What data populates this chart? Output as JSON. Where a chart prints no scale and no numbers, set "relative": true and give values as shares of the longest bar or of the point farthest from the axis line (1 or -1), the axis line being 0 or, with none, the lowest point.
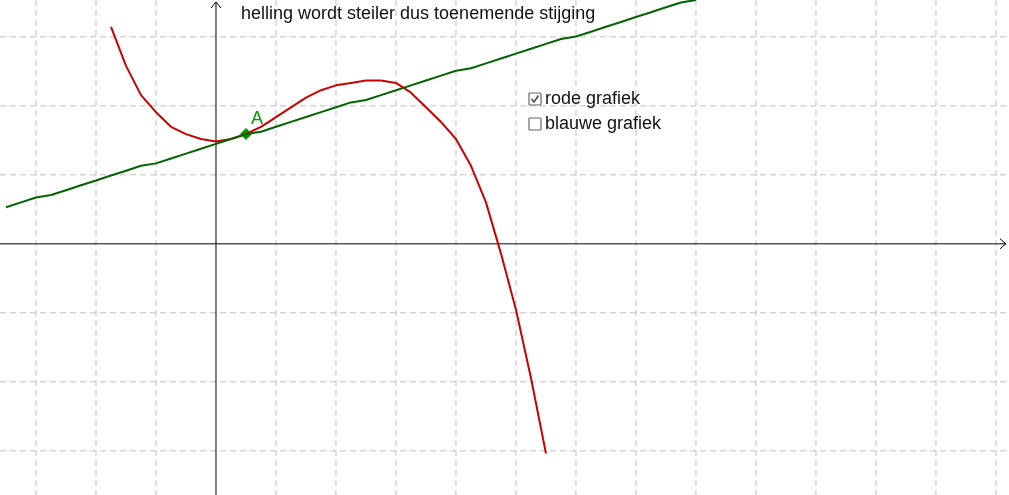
{
  "chart_data": {
    "type": "line",
    "relative": true,
    "title": "helling wordt steiler dus toenemende stijging",
    "annotations": [
      "rode grafiek",
      "blauwe grafiek",
      {
        "text": "A",
        "y": 0.45
      }
    ],
    "grid": true,
    "tick_labels": false,
    "marker": "none",
    "categories": [
      null,
      null,
      null,
      null,
      null,
      null,
      null,
      null,
      null,
      null,
      null,
      null,
      null,
      null,
      null,
      null,
      null,
      null,
      null,
      null,
      null,
      null,
      null,
      null,
      null,
      null,
      null,
      null,
      null,
      null,
      null,
      null,
      null,
      null,
      null,
      null,
      null,
      null,
      null,
      null,
      null,
      null,
      null,
      null,
      null,
      null,
      null,
      null,
      null,
      null,
      null,
      null,
      null,
      null,
      null,
      null,
      null,
      null,
      null,
      null,
      null,
      null,
      null,
      null,
      null,
      null,
      null
    ],
    "series": [
      {
        "color": "#cc0000",
        "values": [
          null,
          null,
          null,
          null,
          null,
          null,
          null,
          0.89,
          0.73,
          0.61,
          0.54,
          0.48,
          0.45,
          0.43,
          0.42,
          0.43,
          0.45,
          0.48,
          0.52,
          0.56,
          0.6,
          0.63,
          0.65,
          0.66,
          0.67,
          0.67,
          0.66,
          0.62,
          0.56,
          0.5,
          0.43,
          0.32,
          0.17,
          -0.04,
          -0.27,
          -0.55,
          -0.86,
          null,
          null,
          null,
          null,
          null,
          null,
          null,
          null,
          null,
          null,
          null,
          null,
          null,
          null,
          null,
          null,
          null,
          null,
          null,
          null,
          null,
          null,
          null,
          null,
          null,
          null,
          null,
          null,
          null,
          null
        ]
      },
      {
        "color": "#006400",
        "values": [
          0.15,
          0.17,
          0.19,
          0.2,
          0.22,
          0.24,
          0.26,
          0.28,
          0.3,
          0.32,
          0.33,
          0.35,
          0.37,
          0.39,
          0.41,
          0.43,
          0.45,
          0.46,
          0.48,
          0.5,
          0.52,
          0.54,
          0.56,
          0.58,
          0.59,
          0.61,
          0.63,
          0.65,
          0.67,
          0.69,
          0.71,
          0.72,
          0.74,
          0.76,
          0.78,
          0.8,
          0.82,
          0.84,
          0.85,
          0.87,
          0.89,
          0.91,
          0.93,
          0.95,
          0.97,
          0.99,
          1,
          null,
          null,
          null,
          null,
          null,
          null,
          null,
          null,
          null,
          null,
          null,
          null,
          null,
          null,
          null,
          null,
          null,
          null,
          null,
          null
        ]
      }
    ]
  }
}
